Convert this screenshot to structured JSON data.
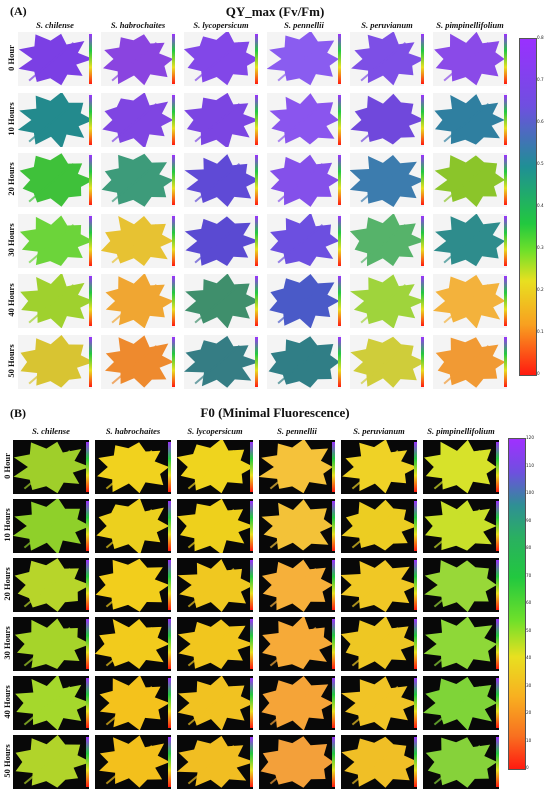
{
  "panel_a": {
    "letter": "(A)",
    "title": "QY_max (Fv/Fm)",
    "columns": [
      "S. chilense",
      "S. habrochaites",
      "S. lycopersicum",
      "S. pennellii",
      "S. peruvianum",
      "S. pimpinellifolium"
    ],
    "rows": [
      "0 Hour",
      "10 Hours",
      "20 Hours",
      "30 Hours",
      "40 Hours",
      "50 Hours"
    ],
    "colorbar_ticks": [
      "0.8",
      "0.7",
      "0.6",
      "0.5",
      "0.4",
      "0.3",
      "0.2",
      "0.1",
      "0"
    ],
    "tile_colors": [
      [
        "#7b3fe4",
        "#8a44e0",
        "#8247e8",
        "#8a5cf0",
        "#7d4fe6",
        "#8a4ae8"
      ],
      [
        "#238a8d",
        "#7f45e2",
        "#7b45e2",
        "#8a55ee",
        "#7048dc",
        "#2f7fa0"
      ],
      [
        "#3fc13a",
        "#3d9b7a",
        "#5f4ad6",
        "#8450ea",
        "#3c7cae",
        "#8bc52a"
      ],
      [
        "#6cd43a",
        "#e7c232",
        "#5a4ad2",
        "#6c4fe0",
        "#56b36a",
        "#2e8c8c"
      ],
      [
        "#9fd12e",
        "#f0a632",
        "#3f8f6c",
        "#4a5ac8",
        "#9fd43c",
        "#f3b23c"
      ],
      [
        "#d8c432",
        "#ee8a2e",
        "#357d84",
        "#307e86",
        "#cfcd3a",
        "#f19a34"
      ]
    ]
  },
  "panel_b": {
    "letter": "(B)",
    "title": "F0 (Minimal Fluorescence)",
    "columns": [
      "S. chilense",
      "S. habrochaites",
      "S. lycopersicum",
      "S. pennellii",
      "S. peruvianum",
      "S. pimpinellifolium"
    ],
    "rows": [
      "0 Hour",
      "10 Hours",
      "20 Hours",
      "30 Hours",
      "40 Hours",
      "50 Hours"
    ],
    "colorbar_ticks": [
      "120",
      "110",
      "100",
      "90",
      "80",
      "70",
      "60",
      "50",
      "40",
      "30",
      "20",
      "10",
      "0"
    ],
    "tile_colors": [
      [
        "#9fcf2a",
        "#f1d21e",
        "#efd41e",
        "#f5c23a",
        "#efd226",
        "#d7e22a"
      ],
      [
        "#8fd02a",
        "#ecd01e",
        "#eed01c",
        "#f3c238",
        "#eccd22",
        "#c9e02a"
      ],
      [
        "#b7d52a",
        "#f2ce1c",
        "#f0c820",
        "#f6b03a",
        "#f0c825",
        "#98d838"
      ],
      [
        "#a6d42a",
        "#f2cb1c",
        "#f1c61e",
        "#f6aa38",
        "#eec723",
        "#8ed838"
      ],
      [
        "#a5d82c",
        "#f4c21c",
        "#f1c221",
        "#f5a438",
        "#f1c426",
        "#7fd438"
      ],
      [
        "#b1d42a",
        "#f3c01c",
        "#f1be22",
        "#f3a03a",
        "#f0bf26",
        "#86d23a"
      ]
    ]
  }
}
